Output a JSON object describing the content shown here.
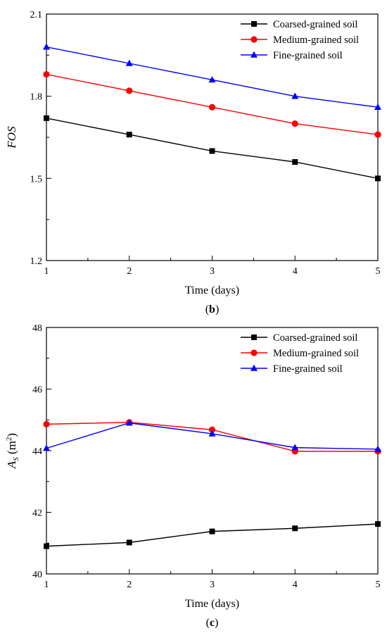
{
  "chart_data": [
    {
      "type": "line",
      "panel_label": "b",
      "xlabel": "Time (days)",
      "ylabel": "FOS",
      "x": [
        1,
        2,
        3,
        4,
        5
      ],
      "xticks": [
        "1",
        "2",
        "3",
        "4",
        "5"
      ],
      "xlim": [
        1,
        5
      ],
      "ylim": [
        1.2,
        2.1
      ],
      "yticks": [
        "1.2",
        "1.5",
        "1.8",
        "2.1"
      ],
      "ytick_values": [
        1.2,
        1.5,
        1.8,
        2.1
      ],
      "grid": false,
      "legend_position": "top-right",
      "series": [
        {
          "name": "Coarsed-grained soil",
          "color": "#000000",
          "marker": "square",
          "values": [
            1.72,
            1.66,
            1.6,
            1.56,
            1.5
          ]
        },
        {
          "name": "Medium-grained soil",
          "color": "#ff0000",
          "marker": "circle",
          "values": [
            1.88,
            1.82,
            1.76,
            1.7,
            1.66
          ]
        },
        {
          "name": "Fine-grained soil",
          "color": "#0000ff",
          "marker": "triangle",
          "values": [
            1.98,
            1.92,
            1.86,
            1.8,
            1.76
          ]
        }
      ]
    },
    {
      "type": "line",
      "panel_label": "c",
      "xlabel": "Time (days)",
      "ylabel_main": "A",
      "ylabel_sub": "S",
      "ylabel_unit": " (m",
      "ylabel_sup": "2",
      "ylabel_close": ")",
      "x": [
        1,
        2,
        3,
        4,
        5
      ],
      "xticks": [
        "1",
        "2",
        "3",
        "4",
        "5"
      ],
      "xlim": [
        1,
        5
      ],
      "ylim": [
        40,
        48
      ],
      "yticks": [
        "40",
        "42",
        "44",
        "46",
        "48"
      ],
      "ytick_values": [
        40,
        42,
        44,
        46,
        48
      ],
      "grid": false,
      "legend_position": "top-right",
      "series": [
        {
          "name": "Coarsed-grained soil",
          "color": "#000000",
          "marker": "square",
          "values": [
            40.9,
            41.02,
            41.38,
            41.48,
            41.62
          ]
        },
        {
          "name": "Medium-grained soil",
          "color": "#ff0000",
          "marker": "circle",
          "values": [
            44.86,
            44.92,
            44.68,
            43.98,
            43.98
          ]
        },
        {
          "name": "Fine-grained soil",
          "color": "#0000ff",
          "marker": "triangle",
          "values": [
            44.08,
            44.9,
            44.55,
            44.1,
            44.05
          ]
        }
      ]
    }
  ]
}
